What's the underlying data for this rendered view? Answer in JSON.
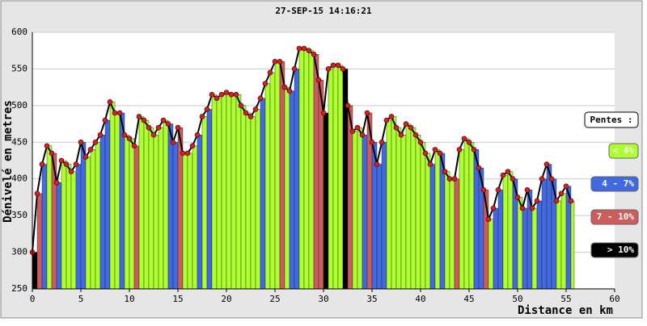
{
  "chart_data": {
    "type": "profile",
    "title": "27-SEP-15 14:16:21",
    "x_label": "Distance en km",
    "y_label": "Dénivelé en metres",
    "xlim": [
      0,
      60
    ],
    "xticks": [
      0,
      5,
      10,
      15,
      20,
      25,
      30,
      35,
      40,
      45,
      50,
      55,
      60
    ],
    "ylim": [
      250,
      600
    ],
    "yticks": [
      250,
      300,
      350,
      400,
      450,
      500,
      550,
      600
    ],
    "grid": true,
    "line_color": "#000000",
    "marker_color": "#d62020",
    "x": [
      0,
      0.5,
      1,
      1.5,
      2,
      2.5,
      3,
      3.5,
      4,
      4.5,
      5,
      5.5,
      6,
      6.5,
      7,
      7.5,
      8,
      8.5,
      9,
      9.5,
      10,
      10.5,
      11,
      11.5,
      12,
      12.5,
      13,
      13.5,
      14,
      14.5,
      15,
      15.5,
      16,
      16.5,
      17,
      17.5,
      18,
      18.5,
      19,
      19.5,
      20,
      20.5,
      21,
      21.5,
      22,
      22.5,
      23,
      23.5,
      24,
      24.5,
      25,
      25.5,
      26,
      26.5,
      27,
      27.5,
      28,
      28.5,
      29,
      29.5,
      30,
      30.5,
      31,
      31.5,
      32,
      32.5,
      33,
      33.5,
      34,
      34.5,
      35,
      35.5,
      36,
      36.5,
      37,
      37.5,
      38,
      38.5,
      39,
      39.5,
      40,
      40.5,
      41,
      41.5,
      42,
      42.5,
      43,
      43.5,
      44,
      44.5,
      45,
      45.5,
      46,
      46.5,
      47,
      47.5,
      48,
      48.5,
      49,
      49.5,
      50,
      50.5,
      51,
      51.5,
      52,
      52.5,
      53,
      53.5,
      54,
      54.5,
      55,
      55.5
    ],
    "values": [
      300,
      380,
      420,
      445,
      435,
      395,
      425,
      420,
      410,
      420,
      450,
      430,
      440,
      450,
      460,
      480,
      505,
      490,
      490,
      460,
      455,
      445,
      485,
      480,
      470,
      460,
      470,
      480,
      475,
      450,
      470,
      435,
      435,
      445,
      460,
      485,
      495,
      515,
      510,
      515,
      518,
      515,
      515,
      500,
      490,
      485,
      495,
      510,
      530,
      545,
      560,
      560,
      525,
      520,
      550,
      578,
      578,
      575,
      570,
      535,
      490,
      550,
      555,
      555,
      550,
      500,
      465,
      470,
      460,
      490,
      450,
      420,
      450,
      480,
      485,
      470,
      460,
      475,
      470,
      460,
      450,
      435,
      420,
      440,
      435,
      410,
      400,
      400,
      440,
      455,
      450,
      440,
      415,
      385,
      345,
      360,
      385,
      405,
      410,
      400,
      375,
      360,
      385,
      360,
      370,
      400,
      420,
      400,
      370,
      380,
      390,
      370
    ],
    "legend_title": "Pentes :",
    "slope_limits": [
      4,
      7,
      10
    ],
    "legend": [
      {
        "label": "< 4%",
        "color": "#adff2f"
      },
      {
        "label": "4 - 7%",
        "color": "#4169e1"
      },
      {
        "label": "7 - 10%",
        "color": "#cd5c5c"
      },
      {
        "label": "> 10%",
        "color": "#000000"
      }
    ]
  }
}
